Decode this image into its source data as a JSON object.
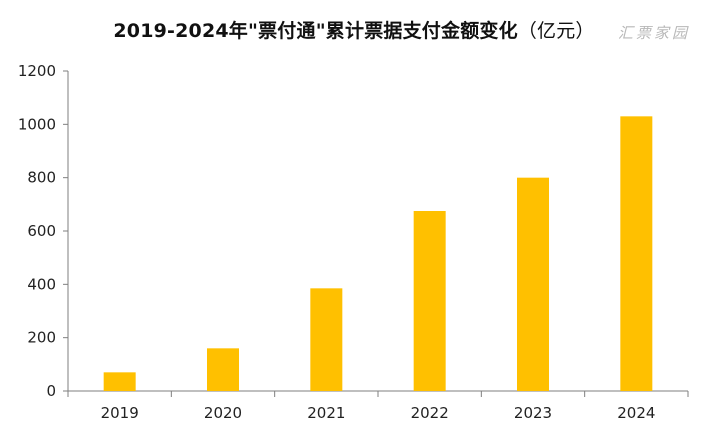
{
  "title": {
    "main": "2019-2024年\"票付通\"累计票据支付金额变化",
    "unit": "（亿元）"
  },
  "watermark": "汇票家园",
  "colors": {
    "bar": "#FFC000",
    "axis": "#7f7f7f",
    "text": "#222222"
  },
  "chart_data": {
    "type": "bar",
    "title": "2019-2024年\"票付通\"累计票据支付金额变化（亿元）",
    "categories": [
      "2019",
      "2020",
      "2021",
      "2022",
      "2023",
      "2024"
    ],
    "values": [
      70,
      160,
      385,
      675,
      800,
      1030
    ],
    "ylim": [
      0,
      1200
    ],
    "yticks": [
      0,
      200,
      400,
      600,
      800,
      1000,
      1200
    ],
    "grid": false,
    "legend": "none"
  }
}
